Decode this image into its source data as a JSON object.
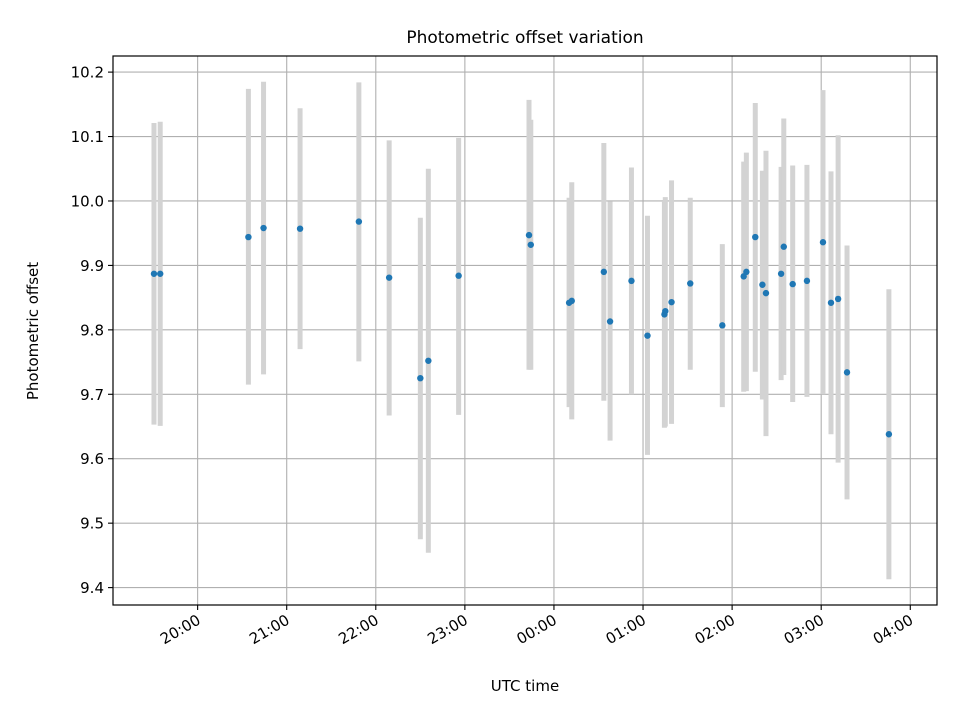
{
  "chart_data": {
    "type": "scatter",
    "title": "Photometric offset variation",
    "xlabel": "UTC time",
    "ylabel": "Photometric offset",
    "x_units": "hours since 19:00 UTC (first day); values above 5 are after midnight",
    "xlim": [
      0.05,
      9.3
    ],
    "ylim": [
      9.373,
      10.225
    ],
    "grid": true,
    "xticks": [
      {
        "value": 1,
        "label": "20:00"
      },
      {
        "value": 2,
        "label": "21:00"
      },
      {
        "value": 3,
        "label": "22:00"
      },
      {
        "value": 4,
        "label": "23:00"
      },
      {
        "value": 5,
        "label": "00:00"
      },
      {
        "value": 6,
        "label": "01:00"
      },
      {
        "value": 7,
        "label": "02:00"
      },
      {
        "value": 8,
        "label": "03:00"
      },
      {
        "value": 9,
        "label": "04:00"
      }
    ],
    "yticks": [
      {
        "value": 9.4,
        "label": "9.4"
      },
      {
        "value": 9.5,
        "label": "9.5"
      },
      {
        "value": 9.6,
        "label": "9.6"
      },
      {
        "value": 9.7,
        "label": "9.7"
      },
      {
        "value": 9.8,
        "label": "9.8"
      },
      {
        "value": 9.9,
        "label": "9.9"
      },
      {
        "value": 10.0,
        "label": "10.0"
      },
      {
        "value": 10.1,
        "label": "10.1"
      },
      {
        "value": 10.2,
        "label": "10.2"
      }
    ],
    "colors": {
      "point": "#1f77b4",
      "errorbar": "#d3d3d3",
      "grid": "#b0b0b0"
    },
    "series": [
      {
        "points": [
          {
            "x": 0.51,
            "y": 9.887,
            "lo": 9.653,
            "hi": 10.121
          },
          {
            "x": 0.58,
            "y": 9.887,
            "lo": 9.651,
            "hi": 10.123
          },
          {
            "x": 1.57,
            "y": 9.944,
            "lo": 9.715,
            "hi": 10.174
          },
          {
            "x": 1.74,
            "y": 9.958,
            "lo": 9.731,
            "hi": 10.185
          },
          {
            "x": 2.15,
            "y": 9.957,
            "lo": 9.77,
            "hi": 10.144
          },
          {
            "x": 2.81,
            "y": 9.968,
            "lo": 9.751,
            "hi": 10.184
          },
          {
            "x": 3.15,
            "y": 9.881,
            "lo": 9.667,
            "hi": 10.094
          },
          {
            "x": 3.5,
            "y": 9.725,
            "lo": 9.475,
            "hi": 9.974
          },
          {
            "x": 3.59,
            "y": 9.752,
            "lo": 9.454,
            "hi": 10.05
          },
          {
            "x": 3.93,
            "y": 9.884,
            "lo": 9.668,
            "hi": 10.098
          },
          {
            "x": 4.72,
            "y": 9.947,
            "lo": 9.738,
            "hi": 10.157
          },
          {
            "x": 4.74,
            "y": 9.932,
            "lo": 9.738,
            "hi": 10.126
          },
          {
            "x": 5.17,
            "y": 9.842,
            "lo": 9.68,
            "hi": 10.005
          },
          {
            "x": 5.2,
            "y": 9.845,
            "lo": 9.661,
            "hi": 10.029
          },
          {
            "x": 5.56,
            "y": 9.89,
            "lo": 9.69,
            "hi": 10.09
          },
          {
            "x": 5.63,
            "y": 9.813,
            "lo": 9.628,
            "hi": 9.999
          },
          {
            "x": 5.87,
            "y": 9.876,
            "lo": 9.7,
            "hi": 10.052
          },
          {
            "x": 6.05,
            "y": 9.791,
            "lo": 9.606,
            "hi": 9.977
          },
          {
            "x": 6.24,
            "y": 9.824,
            "lo": 9.648,
            "hi": 10.0
          },
          {
            "x": 6.25,
            "y": 9.829,
            "lo": 9.65,
            "hi": 10.006
          },
          {
            "x": 6.32,
            "y": 9.843,
            "lo": 9.654,
            "hi": 10.032
          },
          {
            "x": 6.53,
            "y": 9.872,
            "lo": 9.738,
            "hi": 10.005
          },
          {
            "x": 6.89,
            "y": 9.807,
            "lo": 9.68,
            "hi": 9.933
          },
          {
            "x": 7.13,
            "y": 9.883,
            "lo": 9.704,
            "hi": 10.061
          },
          {
            "x": 7.16,
            "y": 9.89,
            "lo": 9.705,
            "hi": 10.075
          },
          {
            "x": 7.26,
            "y": 9.944,
            "lo": 9.735,
            "hi": 10.152
          },
          {
            "x": 7.34,
            "y": 9.87,
            "lo": 9.692,
            "hi": 10.047
          },
          {
            "x": 7.38,
            "y": 9.857,
            "lo": 9.635,
            "hi": 10.078
          },
          {
            "x": 7.55,
            "y": 9.887,
            "lo": 9.722,
            "hi": 10.053
          },
          {
            "x": 7.58,
            "y": 9.929,
            "lo": 9.73,
            "hi": 10.128
          },
          {
            "x": 7.68,
            "y": 9.871,
            "lo": 9.688,
            "hi": 10.055
          },
          {
            "x": 7.84,
            "y": 9.876,
            "lo": 9.696,
            "hi": 10.056
          },
          {
            "x": 8.02,
            "y": 9.936,
            "lo": 9.7,
            "hi": 10.172
          },
          {
            "x": 8.11,
            "y": 9.842,
            "lo": 9.638,
            "hi": 10.046
          },
          {
            "x": 8.19,
            "y": 9.848,
            "lo": 9.594,
            "hi": 10.102
          },
          {
            "x": 8.29,
            "y": 9.734,
            "lo": 9.537,
            "hi": 9.931
          },
          {
            "x": 8.76,
            "y": 9.638,
            "lo": 9.413,
            "hi": 9.863
          }
        ]
      }
    ]
  }
}
